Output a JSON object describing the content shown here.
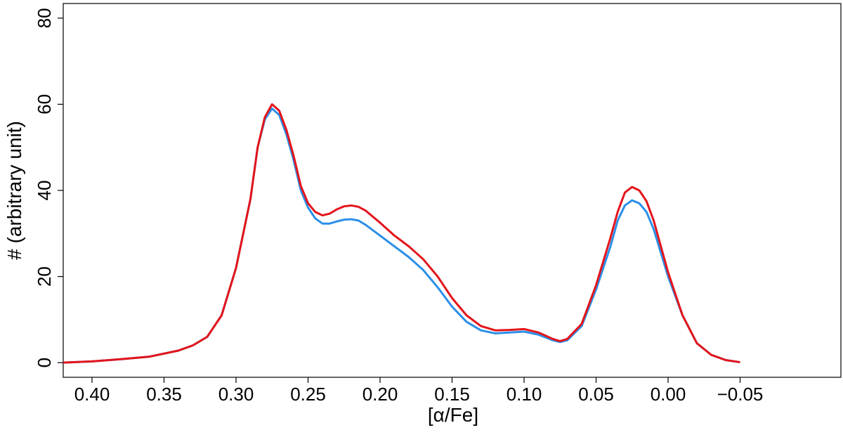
{
  "chart_data": {
    "type": "line",
    "x_label": "[α/Fe]",
    "y_label": "# (arbitrary unit)",
    "x": [
      0.42,
      0.4,
      0.38,
      0.36,
      0.34,
      0.33,
      0.32,
      0.31,
      0.3,
      0.29,
      0.285,
      0.28,
      0.275,
      0.27,
      0.265,
      0.26,
      0.255,
      0.25,
      0.245,
      0.24,
      0.235,
      0.23,
      0.225,
      0.22,
      0.215,
      0.21,
      0.2,
      0.19,
      0.18,
      0.17,
      0.16,
      0.15,
      0.14,
      0.13,
      0.12,
      0.11,
      0.1,
      0.09,
      0.08,
      0.075,
      0.07,
      0.06,
      0.05,
      0.04,
      0.035,
      0.03,
      0.025,
      0.02,
      0.015,
      0.01,
      0.0,
      -0.01,
      -0.02,
      -0.03,
      -0.04,
      -0.05
    ],
    "series": [
      {
        "color": "#2b8fe8",
        "values": [
          0,
          0.3,
          0.8,
          1.4,
          2.8,
          4,
          6,
          11,
          22,
          38,
          50,
          56.5,
          59,
          57.5,
          53,
          47,
          40,
          36,
          33.5,
          32.3,
          32.3,
          32.8,
          33.2,
          33.3,
          33,
          32,
          29.5,
          27,
          24.5,
          21.5,
          17.5,
          13,
          9.5,
          7.5,
          6.8,
          7,
          7.2,
          6.5,
          5.2,
          4.8,
          5.2,
          8.5,
          17,
          27,
          33,
          36.5,
          37.7,
          37,
          35,
          31,
          20,
          11,
          4.5,
          1.8,
          0.6,
          0.1
        ]
      },
      {
        "color": "#e3141b",
        "values": [
          0,
          0.3,
          0.8,
          1.4,
          2.8,
          4,
          6,
          11,
          22,
          38,
          50,
          57,
          60,
          58.5,
          54,
          48,
          41,
          37,
          35,
          34.2,
          34.6,
          35.6,
          36.3,
          36.5,
          36.2,
          35.3,
          32.5,
          29.5,
          27,
          24,
          20,
          15,
          11,
          8.5,
          7.5,
          7.6,
          7.8,
          7,
          5.5,
          5,
          5.5,
          9,
          18,
          29,
          35,
          39.5,
          40.8,
          40,
          37.5,
          33,
          21,
          11,
          4.5,
          1.8,
          0.6,
          0.1
        ]
      }
    ],
    "xlim": [
      0.42,
      -0.12
    ],
    "ylim": [
      -3.4,
      83.4
    ],
    "xticks": [
      {
        "value": 0.4,
        "label": "0.40"
      },
      {
        "value": 0.35,
        "label": "0.35"
      },
      {
        "value": 0.3,
        "label": "0.30"
      },
      {
        "value": 0.25,
        "label": "0.25"
      },
      {
        "value": 0.2,
        "label": "0.20"
      },
      {
        "value": 0.15,
        "label": "0.15"
      },
      {
        "value": 0.1,
        "label": "0.10"
      },
      {
        "value": 0.05,
        "label": "0.05"
      },
      {
        "value": 0,
        "label": "0.00"
      },
      {
        "value": -0.05,
        "label": "−0.05"
      }
    ],
    "yticks": [
      0,
      20,
      40,
      60,
      80
    ]
  }
}
